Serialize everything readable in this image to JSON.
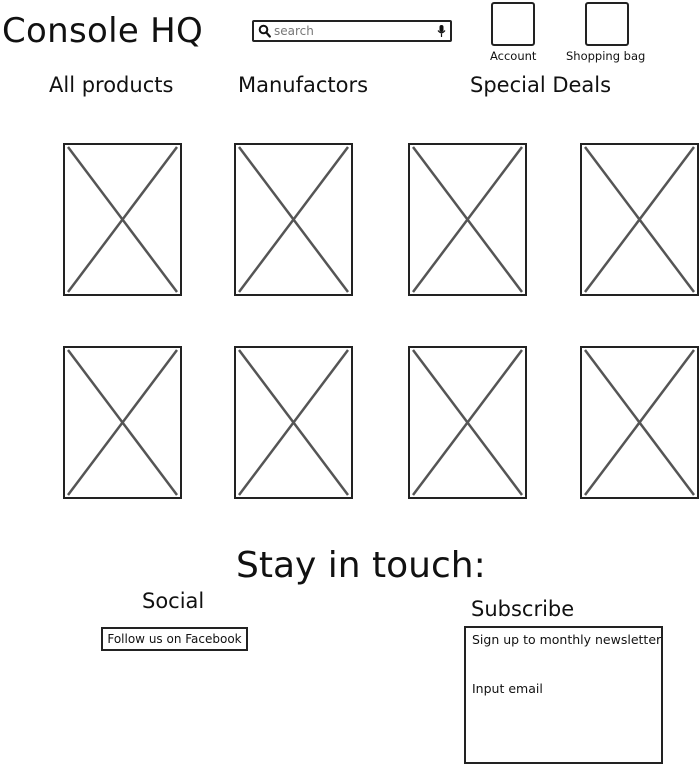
{
  "header": {
    "brand": "Console HQ",
    "search": {
      "placeholder": "search",
      "value": ""
    },
    "account_label": "Account",
    "bag_label": "Shopping bag"
  },
  "nav": {
    "items": [
      {
        "label": "All products"
      },
      {
        "label": "Manufactors"
      },
      {
        "label": "Special Deals"
      }
    ]
  },
  "products": {
    "rows": 2,
    "per_row": 4,
    "placeholder_icon": "image-placeholder-icon"
  },
  "footer": {
    "heading": "Stay in touch:",
    "social": {
      "heading": "Social",
      "facebook_button": "Follow us on Facebook"
    },
    "subscribe": {
      "heading": "Subscribe",
      "description": "Sign up to monthly newsletter",
      "email_placeholder": "Input email"
    }
  },
  "colors": {
    "stroke": "#222222",
    "placeholder_cross": "#555555",
    "background": "#ffffff"
  }
}
